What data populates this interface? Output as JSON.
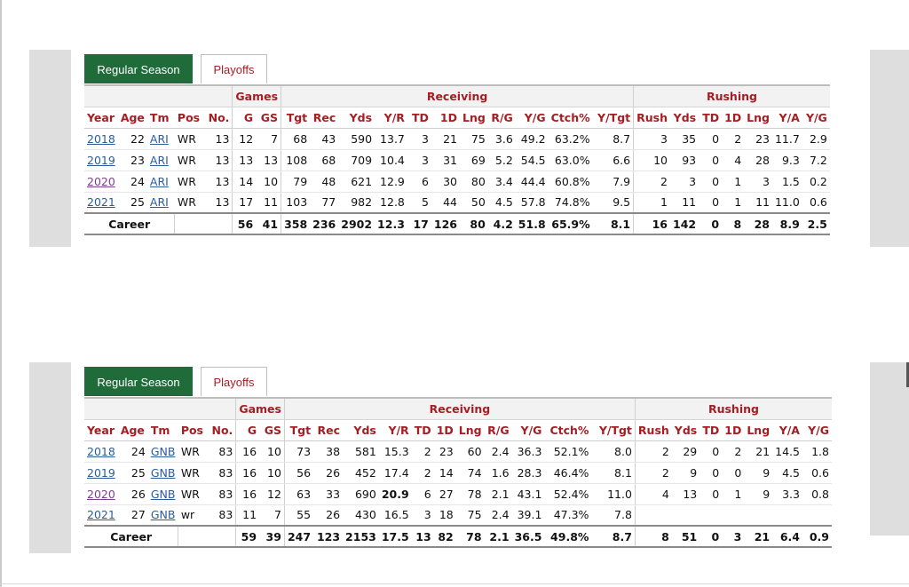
{
  "tabs": {
    "regular": "Regular Season",
    "playoffs": "Playoffs"
  },
  "headers": {
    "groups": {
      "games": "Games",
      "receiving": "Receiving",
      "rushing": "Rushing"
    },
    "columns": [
      "Year",
      "Age",
      "Tm",
      "Pos",
      "No.",
      "G",
      "GS",
      "Tgt",
      "Rec",
      "Yds",
      "Y/R",
      "TD",
      "1D",
      "Lng",
      "R/G",
      "Y/G",
      "Ctch%",
      "Y/Tgt",
      "Rush",
      "Yds",
      "TD",
      "1D",
      "Lng",
      "Y/A",
      "Y/G"
    ]
  },
  "table1": {
    "rows": [
      [
        "2018",
        "22",
        "ARI",
        "WR",
        "13",
        "12",
        "7",
        "68",
        "43",
        "590",
        "13.7",
        "3",
        "21",
        "75",
        "3.6",
        "49.2",
        "63.2%",
        "8.7",
        "3",
        "35",
        "0",
        "2",
        "23",
        "11.7",
        "2.9"
      ],
      [
        "2019",
        "23",
        "ARI",
        "WR",
        "13",
        "13",
        "13",
        "108",
        "68",
        "709",
        "10.4",
        "3",
        "31",
        "69",
        "5.2",
        "54.5",
        "63.0%",
        "6.6",
        "10",
        "93",
        "0",
        "4",
        "28",
        "9.3",
        "7.2"
      ],
      [
        "2020",
        "24",
        "ARI",
        "WR",
        "13",
        "14",
        "10",
        "79",
        "48",
        "621",
        "12.9",
        "6",
        "30",
        "80",
        "3.4",
        "44.4",
        "60.8%",
        "7.9",
        "2",
        "3",
        "0",
        "1",
        "3",
        "1.5",
        "0.2"
      ],
      [
        "2021",
        "25",
        "ARI",
        "WR",
        "13",
        "17",
        "11",
        "103",
        "77",
        "982",
        "12.8",
        "5",
        "44",
        "50",
        "4.5",
        "57.8",
        "74.8%",
        "9.5",
        "1",
        "11",
        "0",
        "1",
        "11",
        "11.0",
        "0.6"
      ]
    ],
    "career": {
      "label": "Career",
      "values": [
        "56",
        "41",
        "358",
        "236",
        "2902",
        "12.3",
        "17",
        "126",
        "80",
        "4.2",
        "51.8",
        "65.9%",
        "8.1",
        "16",
        "142",
        "0",
        "8",
        "28",
        "8.9",
        "2.5"
      ]
    }
  },
  "table2": {
    "rows": [
      [
        "2018",
        "24",
        "GNB",
        "WR",
        "83",
        "16",
        "10",
        "73",
        "38",
        "581",
        "15.3",
        "2",
        "23",
        "60",
        "2.4",
        "36.3",
        "52.1%",
        "8.0",
        "2",
        "29",
        "0",
        "2",
        "21",
        "14.5",
        "1.8"
      ],
      [
        "2019",
        "25",
        "GNB",
        "WR",
        "83",
        "16",
        "10",
        "56",
        "26",
        "452",
        "17.4",
        "2",
        "14",
        "74",
        "1.6",
        "28.3",
        "46.4%",
        "8.1",
        "2",
        "9",
        "0",
        "0",
        "9",
        "4.5",
        "0.6"
      ],
      [
        "2020",
        "26",
        "GNB",
        "WR",
        "83",
        "16",
        "12",
        "63",
        "33",
        "690",
        "20.9",
        "6",
        "27",
        "78",
        "2.1",
        "43.1",
        "52.4%",
        "11.0",
        "4",
        "13",
        "0",
        "1",
        "9",
        "3.3",
        "0.8"
      ],
      [
        "2021",
        "27",
        "GNB",
        "wr",
        "83",
        "11",
        "7",
        "55",
        "26",
        "430",
        "16.5",
        "3",
        "18",
        "75",
        "2.4",
        "39.1",
        "47.3%",
        "7.8",
        "",
        "",
        "",
        "",
        "",
        "",
        ""
      ]
    ],
    "career": {
      "label": "Career",
      "values": [
        "59",
        "39",
        "247",
        "123",
        "2153",
        "17.5",
        "13",
        "82",
        "78",
        "2.1",
        "36.5",
        "49.8%",
        "8.7",
        "8",
        "51",
        "0",
        "3",
        "21",
        "6.4",
        "0.9"
      ]
    }
  },
  "colors": {
    "tab_active": "#1f6b3a",
    "header_text": "#a41e22",
    "link": "#2a5c9c",
    "link_visited": "#7b3f8f"
  }
}
